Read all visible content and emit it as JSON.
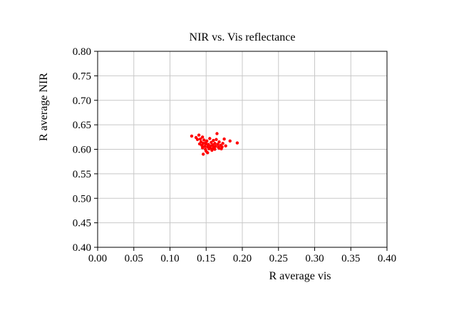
{
  "chart_data": {
    "type": "scatter",
    "title": "NIR vs. Vis reflectance",
    "xlabel": "R average vis",
    "ylabel": "R average NIR",
    "xlim": [
      0.0,
      0.4
    ],
    "ylim": [
      0.4,
      0.8
    ],
    "xticks": [
      "0.00",
      "0.05",
      "0.10",
      "0.15",
      "0.20",
      "0.25",
      "0.30",
      "0.35",
      "0.40"
    ],
    "yticks": [
      "0.40",
      "0.45",
      "0.50",
      "0.55",
      "0.60",
      "0.65",
      "0.70",
      "0.75",
      "0.80"
    ],
    "grid": true,
    "marker_color": "#ff0000",
    "series": [
      {
        "points": [
          [
            0.13,
            0.627
          ],
          [
            0.136,
            0.624
          ],
          [
            0.14,
            0.629
          ],
          [
            0.142,
            0.621
          ],
          [
            0.143,
            0.615
          ],
          [
            0.144,
            0.608
          ],
          [
            0.145,
            0.603
          ],
          [
            0.146,
            0.612
          ],
          [
            0.147,
            0.619
          ],
          [
            0.148,
            0.606
          ],
          [
            0.149,
            0.6
          ],
          [
            0.15,
            0.611
          ],
          [
            0.15,
            0.596
          ],
          [
            0.151,
            0.617
          ],
          [
            0.152,
            0.605
          ],
          [
            0.153,
            0.61
          ],
          [
            0.154,
            0.601
          ],
          [
            0.155,
            0.622
          ],
          [
            0.156,
            0.607
          ],
          [
            0.157,
            0.614
          ],
          [
            0.158,
            0.598
          ],
          [
            0.159,
            0.609
          ],
          [
            0.16,
            0.618
          ],
          [
            0.161,
            0.603
          ],
          [
            0.162,
            0.612
          ],
          [
            0.163,
            0.606
          ],
          [
            0.164,
            0.62
          ],
          [
            0.165,
            0.632
          ],
          [
            0.166,
            0.61
          ],
          [
            0.167,
            0.604
          ],
          [
            0.168,
            0.615
          ],
          [
            0.17,
            0.608
          ],
          [
            0.171,
            0.601
          ],
          [
            0.173,
            0.612
          ],
          [
            0.175,
            0.621
          ],
          [
            0.177,
            0.607
          ],
          [
            0.183,
            0.617
          ],
          [
            0.193,
            0.613
          ],
          [
            0.146,
            0.59
          ],
          [
            0.152,
            0.593
          ],
          [
            0.158,
            0.601
          ],
          [
            0.16,
            0.606
          ],
          [
            0.149,
            0.613
          ],
          [
            0.155,
            0.603
          ],
          [
            0.162,
            0.6
          ],
          [
            0.145,
            0.625
          ],
          [
            0.138,
            0.62
          ],
          [
            0.141,
            0.611
          ],
          [
            0.168,
            0.602
          ],
          [
            0.172,
            0.605
          ]
        ]
      }
    ]
  }
}
